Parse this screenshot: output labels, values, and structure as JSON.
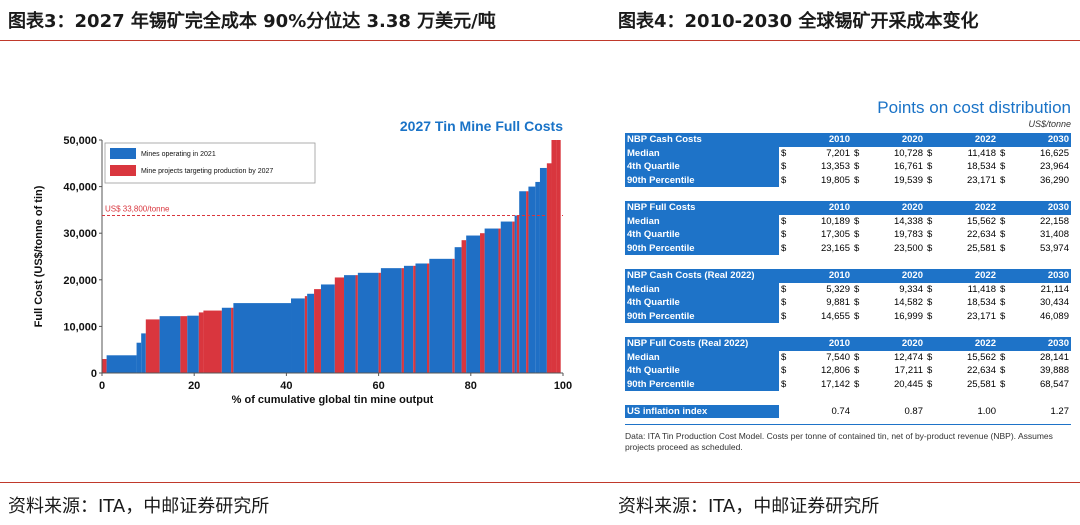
{
  "headers": {
    "left": "图表3：2027 年锡矿完全成本 90%分位达 3.38 万美元/吨",
    "right": "图表4：2010-2030 全球锡矿开采成本变化"
  },
  "footers": {
    "left": "资料来源：ITA，中邮证券研究所",
    "right": "资料来源：ITA，中邮证券研究所"
  },
  "colors": {
    "operating": "#1f6fc5",
    "project": "#d9363e",
    "title": "#1a73c7",
    "rule": "#c0392b"
  },
  "chart_data": {
    "type": "bar",
    "title": "2027 Tin Mine Full Costs",
    "xlabel": "% of cumulative global tin mine output",
    "ylabel": "Full Cost (US$/tonne of tin)",
    "xlim": [
      0,
      100
    ],
    "ylim": [
      0,
      50000
    ],
    "xticks": [
      "0",
      "20",
      "40",
      "60",
      "80",
      "100"
    ],
    "yticks": [
      "0",
      "10,000",
      "20,000",
      "30,000",
      "40,000",
      "50,000"
    ],
    "legend": [
      "Mines operating in 2021",
      "Mine projects targeting production by 2027"
    ],
    "annotation": "US$ 33,800/tonne",
    "threshold": 33800,
    "segments": [
      {
        "x0": 0,
        "x1": 1,
        "y": 3000,
        "s": 1
      },
      {
        "x0": 1,
        "x1": 7.5,
        "y": 3800,
        "s": 0
      },
      {
        "x0": 7.5,
        "x1": 8.5,
        "y": 6500,
        "s": 0
      },
      {
        "x0": 8.5,
        "x1": 9.5,
        "y": 8500,
        "s": 0
      },
      {
        "x0": 9.5,
        "x1": 12.5,
        "y": 11500,
        "s": 1
      },
      {
        "x0": 12.5,
        "x1": 17,
        "y": 12200,
        "s": 0
      },
      {
        "x0": 17,
        "x1": 18.5,
        "y": 12200,
        "s": 1
      },
      {
        "x0": 18.5,
        "x1": 21,
        "y": 12300,
        "s": 0
      },
      {
        "x0": 21,
        "x1": 22,
        "y": 13000,
        "s": 1
      },
      {
        "x0": 22,
        "x1": 26,
        "y": 13400,
        "s": 1
      },
      {
        "x0": 26,
        "x1": 28,
        "y": 14000,
        "s": 0
      },
      {
        "x0": 28,
        "x1": 28.5,
        "y": 14000,
        "s": 1
      },
      {
        "x0": 28.5,
        "x1": 41,
        "y": 15000,
        "s": 0
      },
      {
        "x0": 41,
        "x1": 44,
        "y": 16000,
        "s": 0
      },
      {
        "x0": 44,
        "x1": 44.5,
        "y": 16500,
        "s": 1
      },
      {
        "x0": 44.5,
        "x1": 46,
        "y": 17000,
        "s": 0
      },
      {
        "x0": 46,
        "x1": 47.5,
        "y": 18000,
        "s": 1
      },
      {
        "x0": 47.5,
        "x1": 50.5,
        "y": 19000,
        "s": 0
      },
      {
        "x0": 50.5,
        "x1": 52.5,
        "y": 20500,
        "s": 1
      },
      {
        "x0": 52.5,
        "x1": 55,
        "y": 21000,
        "s": 0
      },
      {
        "x0": 55,
        "x1": 55.5,
        "y": 21000,
        "s": 1
      },
      {
        "x0": 55.5,
        "x1": 60,
        "y": 21500,
        "s": 0
      },
      {
        "x0": 60,
        "x1": 60.5,
        "y": 21500,
        "s": 1
      },
      {
        "x0": 60.5,
        "x1": 65,
        "y": 22500,
        "s": 0
      },
      {
        "x0": 65,
        "x1": 65.5,
        "y": 22500,
        "s": 1
      },
      {
        "x0": 65.5,
        "x1": 67.5,
        "y": 23000,
        "s": 0
      },
      {
        "x0": 67.5,
        "x1": 68,
        "y": 23000,
        "s": 1
      },
      {
        "x0": 68,
        "x1": 70.5,
        "y": 23500,
        "s": 0
      },
      {
        "x0": 70.5,
        "x1": 71,
        "y": 23500,
        "s": 1
      },
      {
        "x0": 71,
        "x1": 76,
        "y": 24500,
        "s": 0
      },
      {
        "x0": 76,
        "x1": 76.5,
        "y": 24500,
        "s": 1
      },
      {
        "x0": 76.5,
        "x1": 78,
        "y": 27000,
        "s": 0
      },
      {
        "x0": 78,
        "x1": 79,
        "y": 28500,
        "s": 1
      },
      {
        "x0": 79,
        "x1": 82,
        "y": 29500,
        "s": 0
      },
      {
        "x0": 82,
        "x1": 83,
        "y": 30000,
        "s": 1
      },
      {
        "x0": 83,
        "x1": 86,
        "y": 31000,
        "s": 0
      },
      {
        "x0": 86,
        "x1": 86.5,
        "y": 31000,
        "s": 1
      },
      {
        "x0": 86.5,
        "x1": 89,
        "y": 32500,
        "s": 0
      },
      {
        "x0": 89,
        "x1": 89.5,
        "y": 32500,
        "s": 1
      },
      {
        "x0": 89.5,
        "x1": 90,
        "y": 33800,
        "s": 0
      },
      {
        "x0": 90,
        "x1": 90.5,
        "y": 33800,
        "s": 1
      },
      {
        "x0": 90.5,
        "x1": 92,
        "y": 39000,
        "s": 0
      },
      {
        "x0": 92,
        "x1": 92.5,
        "y": 39000,
        "s": 1
      },
      {
        "x0": 92.5,
        "x1": 94,
        "y": 40000,
        "s": 0
      },
      {
        "x0": 94,
        "x1": 95,
        "y": 41000,
        "s": 0
      },
      {
        "x0": 95,
        "x1": 96.5,
        "y": 44000,
        "s": 0
      },
      {
        "x0": 96.5,
        "x1": 97.5,
        "y": 45000,
        "s": 1
      },
      {
        "x0": 97.5,
        "x1": 98.5,
        "y": 50000,
        "s": 1
      },
      {
        "x0": 98.5,
        "x1": 99.5,
        "y": 50000,
        "s": 1
      }
    ]
  },
  "table": {
    "title": "Points on cost distribution",
    "units": "US$/tonne",
    "years": [
      "2010",
      "2020",
      "2022",
      "2030"
    ],
    "currency": "$",
    "sections": [
      {
        "name": "NBP Cash Costs",
        "rows": [
          {
            "label": "Median",
            "values": [
              "7,201",
              "10,728",
              "11,418",
              "16,625"
            ]
          },
          {
            "label": "4th Quartile",
            "values": [
              "13,353",
              "16,761",
              "18,534",
              "23,964"
            ]
          },
          {
            "label": "90th Percentile",
            "values": [
              "19,805",
              "19,539",
              "23,171",
              "36,290"
            ]
          }
        ]
      },
      {
        "name": "NBP Full Costs",
        "rows": [
          {
            "label": "Median",
            "values": [
              "10,189",
              "14,338",
              "15,562",
              "22,158"
            ]
          },
          {
            "label": "4th Quartile",
            "values": [
              "17,305",
              "19,783",
              "22,634",
              "31,408"
            ]
          },
          {
            "label": "90th Percentile",
            "values": [
              "23,165",
              "23,500",
              "25,581",
              "53,974"
            ]
          }
        ]
      },
      {
        "name": "NBP Cash Costs (Real 2022)",
        "rows": [
          {
            "label": "Median",
            "values": [
              "5,329",
              "9,334",
              "11,418",
              "21,114"
            ]
          },
          {
            "label": "4th Quartile",
            "values": [
              "9,881",
              "14,582",
              "18,534",
              "30,434"
            ]
          },
          {
            "label": "90th Percentile",
            "values": [
              "14,655",
              "16,999",
              "23,171",
              "46,089"
            ]
          }
        ]
      },
      {
        "name": "NBP Full Costs (Real 2022)",
        "rows": [
          {
            "label": "Median",
            "values": [
              "7,540",
              "12,474",
              "15,562",
              "28,141"
            ]
          },
          {
            "label": "4th Quartile",
            "values": [
              "12,806",
              "17,211",
              "22,634",
              "39,888"
            ]
          },
          {
            "label": "90th Percentile",
            "values": [
              "17,142",
              "20,445",
              "25,581",
              "68,547"
            ]
          }
        ]
      }
    ],
    "inflation": {
      "label": "US inflation index",
      "values": [
        "0.74",
        "0.87",
        "1.00",
        "1.27"
      ]
    },
    "note": "Data: ITA Tin Production Cost Model. Costs per tonne of contained tin, net of by-product revenue (NBP). Assumes projects proceed as scheduled."
  }
}
